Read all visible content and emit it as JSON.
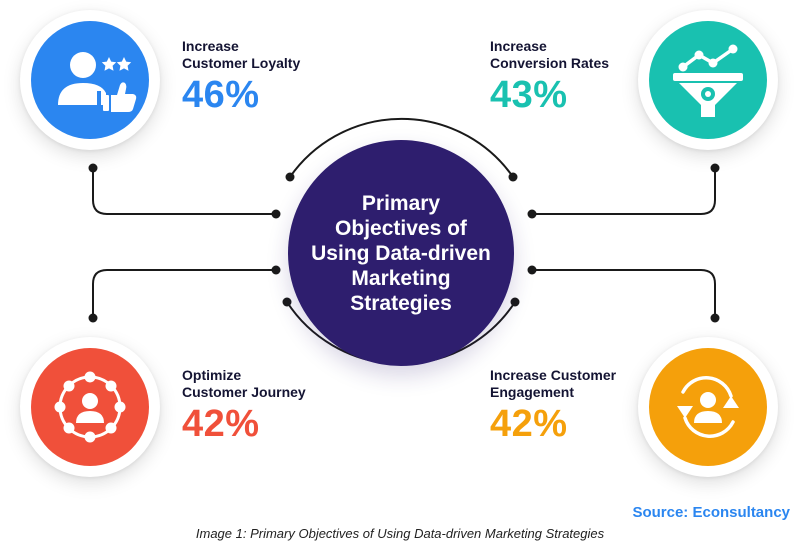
{
  "center": {
    "title": "Primary\nObjectives of\nUsing Data-driven\nMarketing\nStrategies"
  },
  "objectives": [
    {
      "label": "Increase\nCustomer Loyalty",
      "value": "46%",
      "color": "#2b86f0",
      "icon": "customer-loyalty-icon"
    },
    {
      "label": "Increase\nConversion Rates",
      "value": "43%",
      "color": "#19c1b0",
      "icon": "conversion-funnel-icon"
    },
    {
      "label": "Optimize\nCustomer Journey",
      "value": "42%",
      "color": "#f0503a",
      "icon": "customer-journey-icon"
    },
    {
      "label": "Increase Customer\nEngagement",
      "value": "42%",
      "color": "#f5a00b",
      "icon": "customer-engagement-icon"
    }
  ],
  "center_color": "#2e1e6e",
  "source": "Source: Econsultancy",
  "caption": "Image 1: Primary Objectives of Using Data-driven Marketing Strategies"
}
